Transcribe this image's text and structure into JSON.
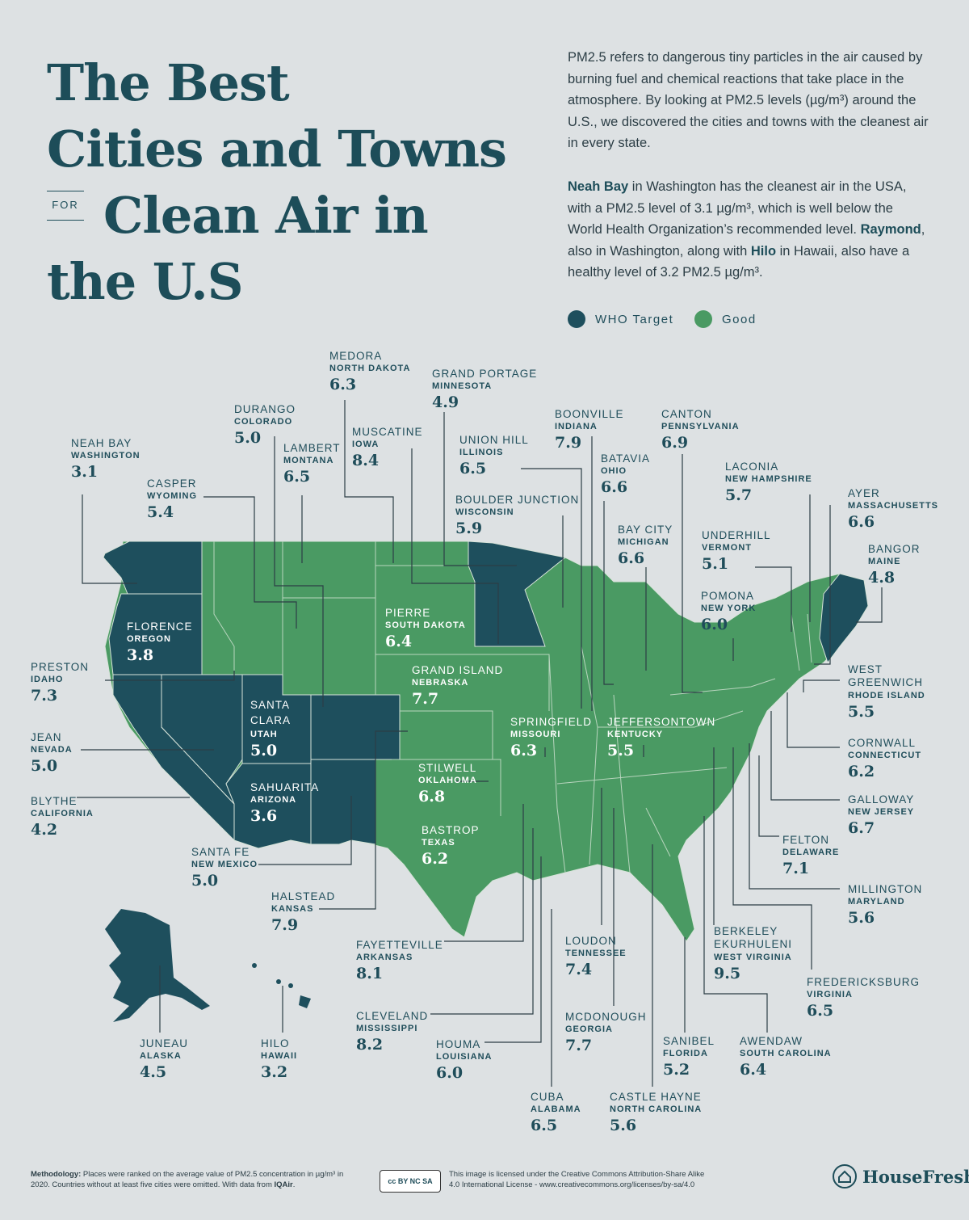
{
  "title": {
    "line1": "The Best",
    "line2": "Cities and Towns",
    "for": "FOR",
    "line3": "Clean Air in",
    "line4": "the U.S"
  },
  "intro": {
    "p1": "PM2.5 refers to dangerous tiny particles in the air caused by burning fuel and chemical reactions that take place in the atmosphere. By looking at PM2.5 levels (µg/m³) around the U.S., we discovered the cities and towns with the cleanest air in every state.",
    "p2_b1": "Neah Bay",
    "p2_t1": " in Washington has the cleanest air in the USA, with a PM2.5 level of 3.1 µg/m³, which is well below the World Health Organization’s recommended level. ",
    "p2_b2": "Raymond",
    "p2_t2": ", also in Washington, along with ",
    "p2_b3": "Hilo",
    "p2_t3": " in Hawaii, also have a healthy level of 3.2 PM2.5 µg/m³."
  },
  "legend": {
    "who": {
      "label": "WHO Target",
      "color": "#1e4f5d"
    },
    "good": {
      "label": "Good",
      "color": "#4a9a63"
    }
  },
  "entries": [
    {
      "city": "MEDORA",
      "state": "NORTH DAKOTA",
      "value": "6.3"
    },
    {
      "city": "GRAND PORTAGE",
      "state": "MINNESOTA",
      "value": "4.9"
    },
    {
      "city": "DURANGO",
      "state": "COLORADO",
      "value": "5.0"
    },
    {
      "city": "MUSCATINE",
      "state": "IOWA",
      "value": "8.4"
    },
    {
      "city": "BOONVILLE",
      "state": "INDIANA",
      "value": "7.9"
    },
    {
      "city": "CANTON",
      "state": "PENNSYLVANIA",
      "value": "6.9"
    },
    {
      "city": "NEAH BAY",
      "state": "WASHINGTON",
      "value": "3.1"
    },
    {
      "city": "LAMBERT",
      "state": "MONTANA",
      "value": "6.5"
    },
    {
      "city": "UNION HILL",
      "state": "ILLINOIS",
      "value": "6.5"
    },
    {
      "city": "BATAVIA",
      "state": "OHIO",
      "value": "6.6"
    },
    {
      "city": "LACONIA",
      "state": "NEW HAMPSHIRE",
      "value": "5.7"
    },
    {
      "city": "CASPER",
      "state": "WYOMING",
      "value": "5.4"
    },
    {
      "city": "BOULDER JUNCTION",
      "state": "WISCONSIN",
      "value": "5.9"
    },
    {
      "city": "AYER",
      "state": "MASSACHUSETTS",
      "value": "6.6"
    },
    {
      "city": "BAY CITY",
      "state": "MICHIGAN",
      "value": "6.6"
    },
    {
      "city": "UNDERHILL",
      "state": "VERMONT",
      "value": "5.1"
    },
    {
      "city": "BANGOR",
      "state": "MAINE",
      "value": "4.8"
    },
    {
      "city": "PIERRE",
      "state": "SOUTH DAKOTA",
      "value": "6.4"
    },
    {
      "city": "POMONA",
      "state": "NEW YORK",
      "value": "6.0"
    },
    {
      "city": "FLORENCE",
      "state": "OREGON",
      "value": "3.8"
    },
    {
      "city": "PRESTON",
      "state": "IDAHO",
      "value": "7.3"
    },
    {
      "city": "GRAND ISLAND",
      "state": "NEBRASKA",
      "value": "7.7"
    },
    {
      "city": "WEST GREENWICH",
      "state": "RHODE ISLAND",
      "value": "5.5"
    },
    {
      "city": "SANTA CLARA",
      "state": "UTAH",
      "value": "5.0"
    },
    {
      "city": "SPRINGFIELD",
      "state": "MISSOURI",
      "value": "6.3"
    },
    {
      "city": "JEFFERSONTOWN",
      "state": "KENTUCKY",
      "value": "5.5"
    },
    {
      "city": "JEAN",
      "state": "NEVADA",
      "value": "5.0"
    },
    {
      "city": "CORNWALL",
      "state": "CONNECTICUT",
      "value": "6.2"
    },
    {
      "city": "STILWELL",
      "state": "OKLAHOMA",
      "value": "6.8"
    },
    {
      "city": "SAHUARITA",
      "state": "ARIZONA",
      "value": "3.6"
    },
    {
      "city": "BLYTHE",
      "state": "CALIFORNIA",
      "value": "4.2"
    },
    {
      "city": "GALLOWAY",
      "state": "NEW JERSEY",
      "value": "6.7"
    },
    {
      "city": "BASTROP",
      "state": "TEXAS",
      "value": "6.2"
    },
    {
      "city": "FELTON",
      "state": "DELAWARE",
      "value": "7.1"
    },
    {
      "city": "SANTA FE",
      "state": "NEW MEXICO",
      "value": "5.0"
    },
    {
      "city": "MILLINGTON",
      "state": "MARYLAND",
      "value": "5.6"
    },
    {
      "city": "HALSTEAD",
      "state": "KANSAS",
      "value": "7.9"
    },
    {
      "city": "BERKELEY EKURHULENI",
      "state": "WEST VIRGINIA",
      "value": "9.5"
    },
    {
      "city": "LOUDON",
      "state": "TENNESSEE",
      "value": "7.4"
    },
    {
      "city": "FAYETTEVILLE",
      "state": "ARKANSAS",
      "value": "8.1"
    },
    {
      "city": "FREDERICKSBURG",
      "state": "VIRGINIA",
      "value": "6.5"
    },
    {
      "city": "CLEVELAND",
      "state": "MISSISSIPPI",
      "value": "8.2"
    },
    {
      "city": "MCDONOUGH",
      "state": "GEORGIA",
      "value": "7.7"
    },
    {
      "city": "JUNEAU",
      "state": "ALASKA",
      "value": "4.5"
    },
    {
      "city": "HILO",
      "state": "HAWAII",
      "value": "3.2"
    },
    {
      "city": "HOUMA",
      "state": "LOUISIANA",
      "value": "6.0"
    },
    {
      "city": "SANIBEL",
      "state": "FLORIDA",
      "value": "5.2"
    },
    {
      "city": "AWENDAW",
      "state": "SOUTH CAROLINA",
      "value": "6.4"
    },
    {
      "city": "CUBA",
      "state": "ALABAMA",
      "value": "6.5"
    },
    {
      "city": "CASTLE HAYNE",
      "state": "NORTH CAROLINA",
      "value": "5.6"
    }
  ],
  "footer": {
    "method_label": "Methodology:",
    "method_text": " Places were ranked on the average value of PM2.5 concentration in µg/m³ in 2020. Countries without at least five cities were omitted. With data from ",
    "method_source": "IQAir",
    "method_end": ".",
    "license": "This image is licensed under the Creative Commons Attribution-Share Alike 4.0 International License - www.creativecommons.org/licenses/by-sa/4.0",
    "cc_badge": "cc BY NC SA",
    "brand": "HouseFresh"
  }
}
